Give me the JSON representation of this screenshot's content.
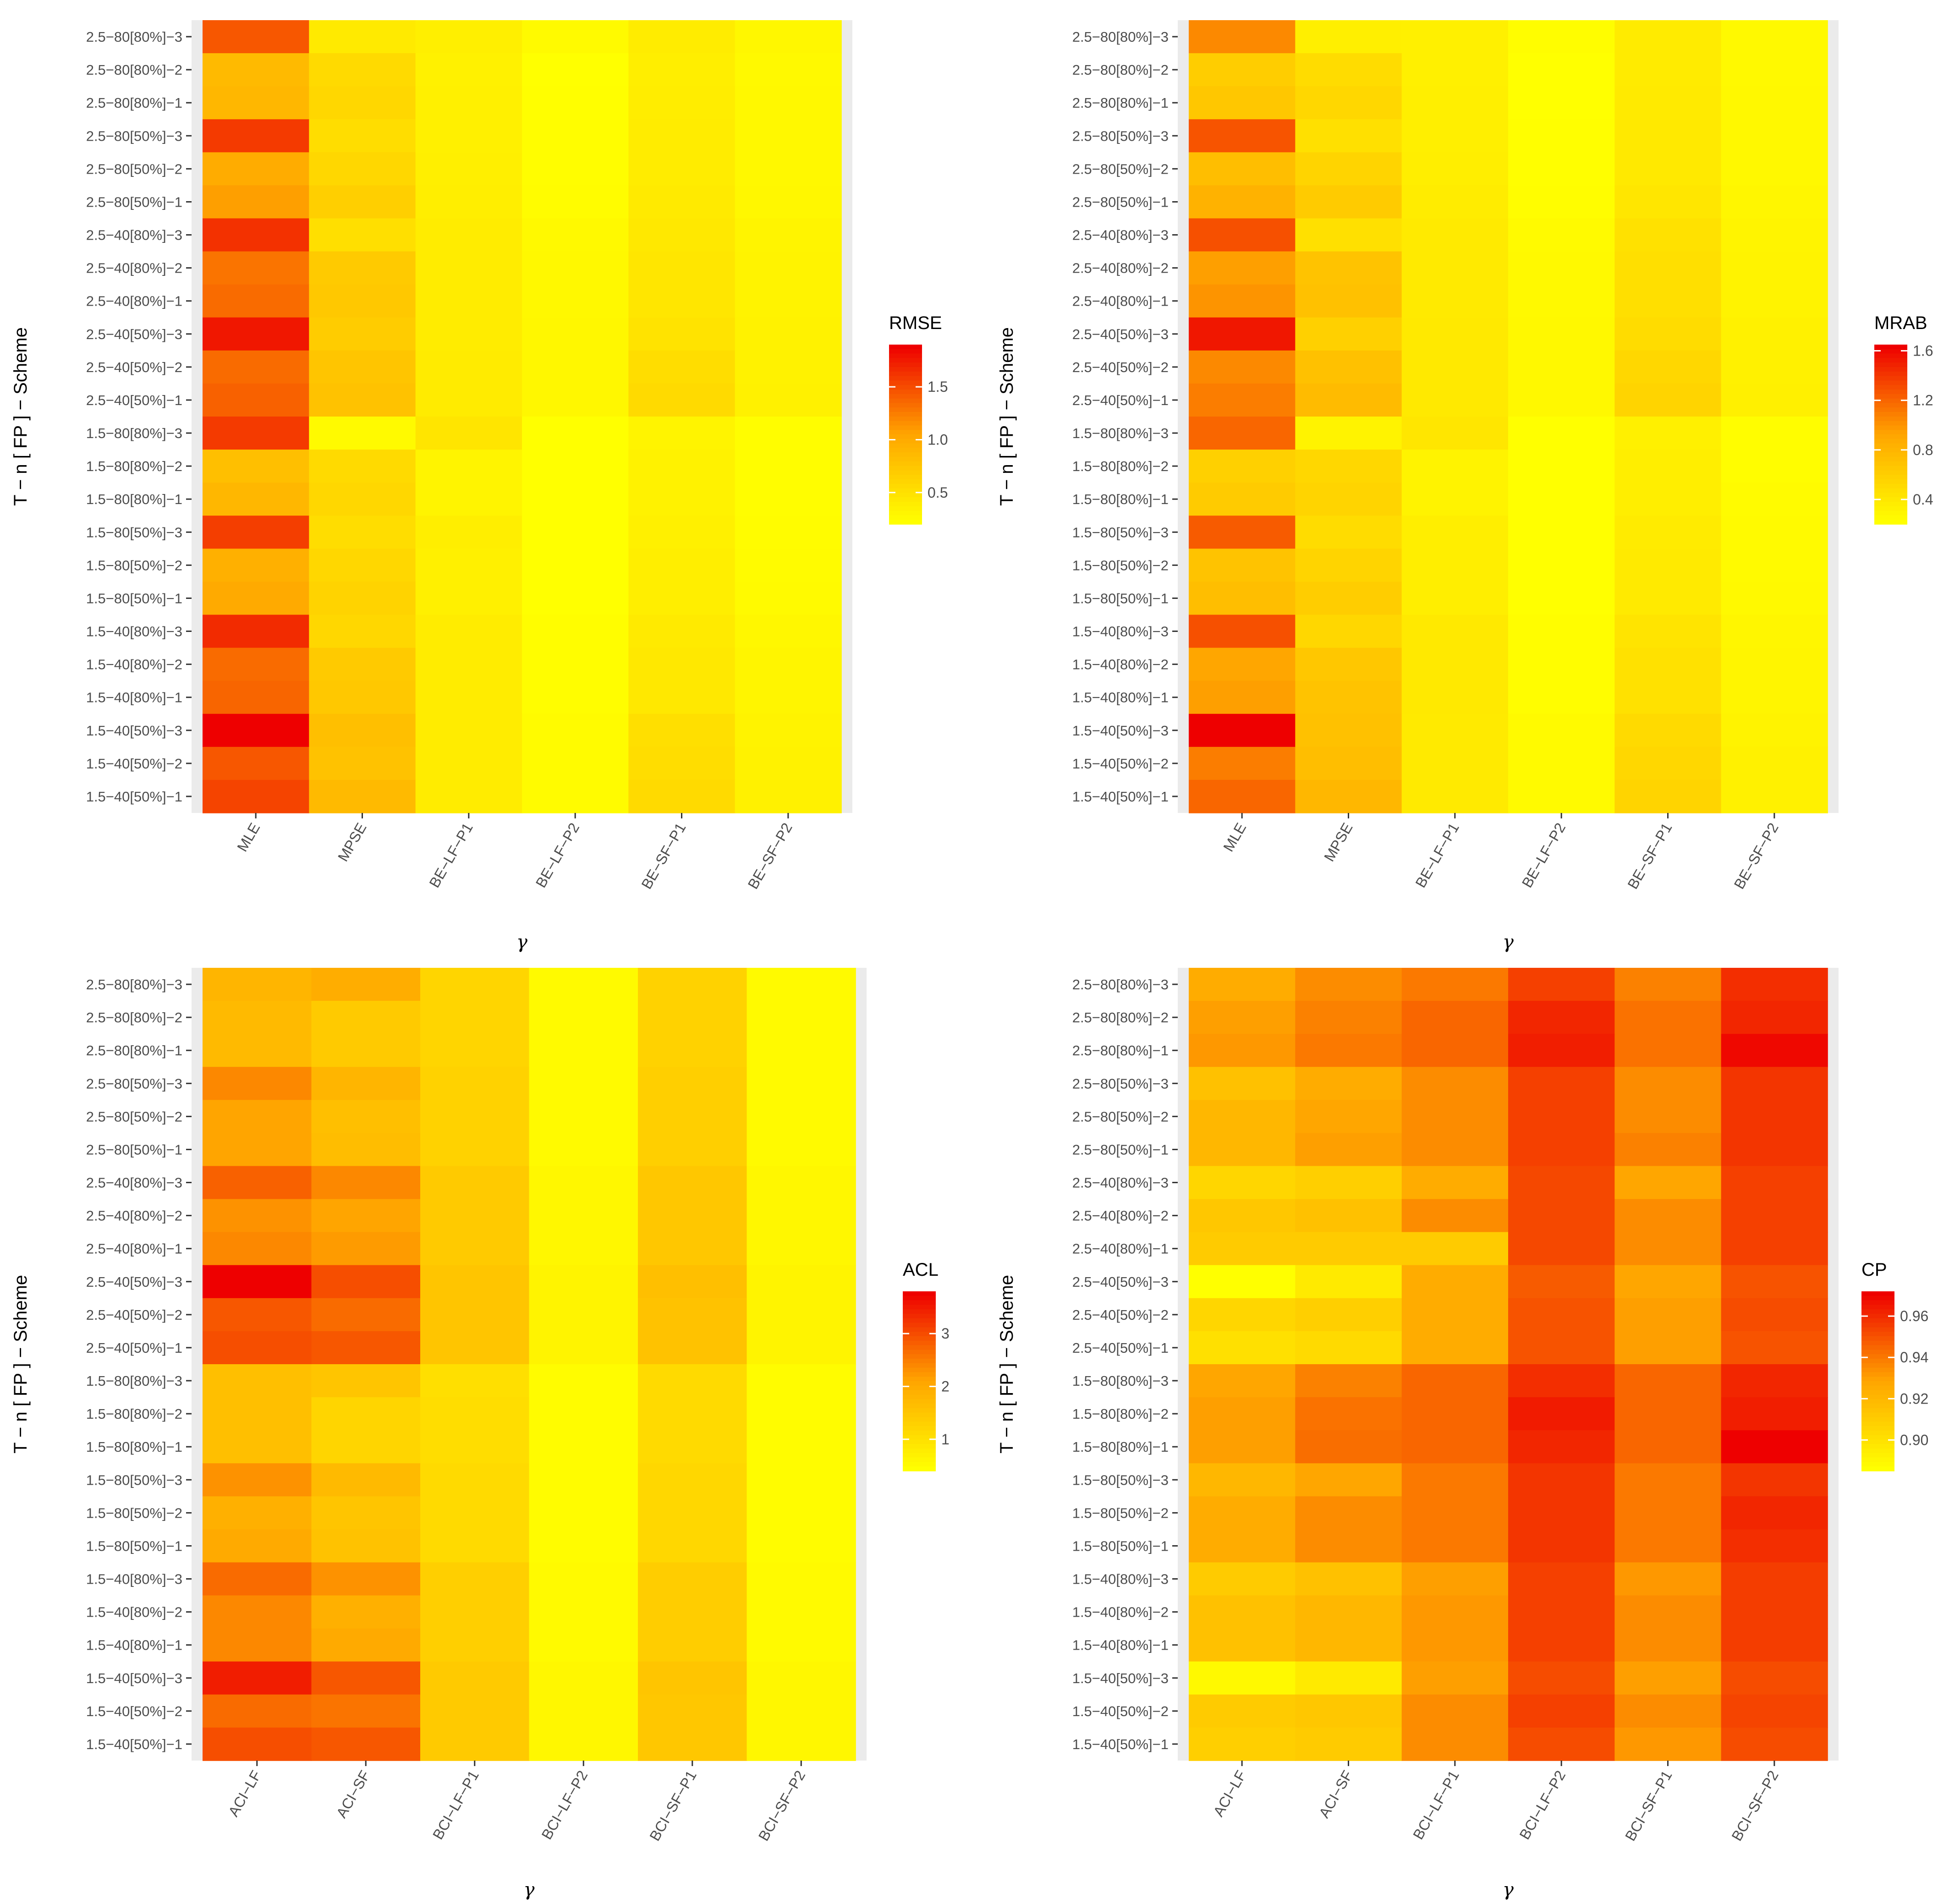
{
  "rows": [
    "2.5−80[80%]−3",
    "2.5−80[80%]−2",
    "2.5−80[80%]−1",
    "2.5−80[50%]−3",
    "2.5−80[50%]−2",
    "2.5−80[50%]−1",
    "2.5−40[80%]−3",
    "2.5−40[80%]−2",
    "2.5−40[80%]−1",
    "2.5−40[50%]−3",
    "2.5−40[50%]−2",
    "2.5−40[50%]−1",
    "1.5−80[80%]−3",
    "1.5−80[80%]−2",
    "1.5−80[80%]−1",
    "1.5−80[50%]−3",
    "1.5−80[50%]−2",
    "1.5−80[50%]−1",
    "1.5−40[80%]−3",
    "1.5−40[80%]−2",
    "1.5−40[80%]−1",
    "1.5−40[50%]−3",
    "1.5−40[50%]−2",
    "1.5−40[50%]−1"
  ],
  "chart_data": [
    {
      "type": "heatmap",
      "id": "rmse",
      "xlabel": "γ",
      "ylabel": "T − n [ FP ] − Scheme",
      "legend_title": "RMSE",
      "legend_ticks": [
        "0.5",
        "1.0",
        "1.5"
      ],
      "legend_tick_values": [
        0.5,
        1.0,
        1.5
      ],
      "range": [
        0.2,
        1.9
      ],
      "columns": [
        "MLE",
        "MPSE",
        "BE−LF−P1",
        "BE−LF−P2",
        "BE−SF−P1",
        "BE−SF−P2"
      ],
      "values": [
        [
          1.45,
          0.4,
          0.35,
          0.25,
          0.38,
          0.28
        ],
        [
          0.85,
          0.55,
          0.33,
          0.2,
          0.36,
          0.26
        ],
        [
          0.88,
          0.58,
          0.34,
          0.21,
          0.37,
          0.27
        ],
        [
          1.6,
          0.52,
          0.34,
          0.22,
          0.38,
          0.27
        ],
        [
          0.98,
          0.58,
          0.35,
          0.22,
          0.38,
          0.27
        ],
        [
          1.08,
          0.65,
          0.36,
          0.23,
          0.4,
          0.28
        ],
        [
          1.65,
          0.5,
          0.38,
          0.26,
          0.42,
          0.3
        ],
        [
          1.3,
          0.7,
          0.38,
          0.27,
          0.44,
          0.31
        ],
        [
          1.35,
          0.72,
          0.38,
          0.27,
          0.44,
          0.31
        ],
        [
          1.78,
          0.68,
          0.38,
          0.28,
          0.46,
          0.32
        ],
        [
          1.35,
          0.75,
          0.39,
          0.28,
          0.52,
          0.32
        ],
        [
          1.4,
          0.78,
          0.39,
          0.28,
          0.55,
          0.33
        ],
        [
          1.6,
          0.25,
          0.45,
          0.18,
          0.3,
          0.22
        ],
        [
          0.8,
          0.55,
          0.3,
          0.16,
          0.32,
          0.22
        ],
        [
          0.88,
          0.58,
          0.3,
          0.16,
          0.32,
          0.22
        ],
        [
          1.58,
          0.52,
          0.36,
          0.18,
          0.34,
          0.23
        ],
        [
          0.95,
          0.58,
          0.34,
          0.18,
          0.36,
          0.24
        ],
        [
          1.0,
          0.62,
          0.34,
          0.18,
          0.36,
          0.25
        ],
        [
          1.68,
          0.58,
          0.38,
          0.22,
          0.4,
          0.28
        ],
        [
          1.35,
          0.7,
          0.38,
          0.22,
          0.42,
          0.29
        ],
        [
          1.38,
          0.72,
          0.38,
          0.22,
          0.42,
          0.29
        ],
        [
          1.9,
          0.8,
          0.38,
          0.24,
          0.5,
          0.31
        ],
        [
          1.45,
          0.78,
          0.38,
          0.24,
          0.52,
          0.32
        ],
        [
          1.55,
          0.85,
          0.38,
          0.24,
          0.55,
          0.33
        ]
      ]
    },
    {
      "type": "heatmap",
      "id": "mrab",
      "xlabel": "γ",
      "ylabel": "T − n [ FP ] − Scheme",
      "legend_title": "MRAB",
      "legend_ticks": [
        "0.4",
        "0.8",
        "1.2",
        "1.6"
      ],
      "legend_tick_values": [
        0.4,
        0.8,
        1.2,
        1.6
      ],
      "range": [
        0.2,
        1.65
      ],
      "columns": [
        "MLE",
        "MPSE",
        "BE−LF−P1",
        "BE−LF−P2",
        "BE−SF−P1",
        "BE−SF−P2"
      ],
      "values": [
        [
          1.05,
          0.33,
          0.32,
          0.22,
          0.36,
          0.25
        ],
        [
          0.6,
          0.48,
          0.32,
          0.2,
          0.36,
          0.25
        ],
        [
          0.65,
          0.52,
          0.33,
          0.2,
          0.37,
          0.26
        ],
        [
          1.28,
          0.45,
          0.33,
          0.21,
          0.38,
          0.26
        ],
        [
          0.72,
          0.55,
          0.34,
          0.21,
          0.38,
          0.26
        ],
        [
          0.82,
          0.62,
          0.35,
          0.22,
          0.4,
          0.27
        ],
        [
          1.3,
          0.45,
          0.37,
          0.24,
          0.44,
          0.29
        ],
        [
          0.95,
          0.68,
          0.37,
          0.25,
          0.46,
          0.3
        ],
        [
          1.0,
          0.7,
          0.37,
          0.25,
          0.46,
          0.3
        ],
        [
          1.55,
          0.58,
          0.38,
          0.26,
          0.48,
          0.31
        ],
        [
          1.05,
          0.7,
          0.38,
          0.26,
          0.52,
          0.31
        ],
        [
          1.1,
          0.75,
          0.38,
          0.26,
          0.55,
          0.32
        ],
        [
          1.2,
          0.3,
          0.4,
          0.18,
          0.32,
          0.22
        ],
        [
          0.58,
          0.52,
          0.3,
          0.16,
          0.34,
          0.22
        ],
        [
          0.62,
          0.55,
          0.3,
          0.16,
          0.34,
          0.23
        ],
        [
          1.25,
          0.48,
          0.34,
          0.18,
          0.36,
          0.24
        ],
        [
          0.68,
          0.55,
          0.34,
          0.18,
          0.37,
          0.24
        ],
        [
          0.72,
          0.6,
          0.34,
          0.18,
          0.37,
          0.25
        ],
        [
          1.3,
          0.52,
          0.38,
          0.22,
          0.42,
          0.27
        ],
        [
          0.92,
          0.65,
          0.38,
          0.22,
          0.44,
          0.28
        ],
        [
          0.95,
          0.68,
          0.38,
          0.22,
          0.44,
          0.28
        ],
        [
          1.65,
          0.7,
          0.37,
          0.24,
          0.5,
          0.3
        ],
        [
          1.1,
          0.72,
          0.37,
          0.24,
          0.52,
          0.31
        ],
        [
          1.2,
          0.78,
          0.37,
          0.24,
          0.55,
          0.31
        ]
      ]
    },
    {
      "type": "heatmap",
      "id": "acl",
      "xlabel": "γ",
      "ylabel": "T − n [ FP ] − Scheme",
      "legend_title": "ACL",
      "legend_ticks": [
        "1",
        "2",
        "3"
      ],
      "legend_tick_values": [
        1,
        2,
        3
      ],
      "range": [
        0.4,
        3.8
      ],
      "columns": [
        "ACI−LF",
        "ACI−SF",
        "BCI−LF−P1",
        "BCI−LF−P2",
        "BCI−SF−P1",
        "BCI−SF−P2"
      ],
      "values": [
        [
          1.8,
          1.95,
          1.2,
          0.5,
          1.25,
          0.5
        ],
        [
          1.7,
          1.4,
          1.2,
          0.5,
          1.25,
          0.5
        ],
        [
          1.7,
          1.4,
          1.2,
          0.5,
          1.25,
          0.5
        ],
        [
          2.4,
          1.8,
          1.25,
          0.5,
          1.3,
          0.5
        ],
        [
          2.1,
          1.6,
          1.25,
          0.5,
          1.3,
          0.5
        ],
        [
          2.1,
          1.65,
          1.25,
          0.5,
          1.3,
          0.5
        ],
        [
          2.8,
          2.4,
          1.4,
          0.55,
          1.45,
          0.55
        ],
        [
          2.3,
          2.1,
          1.4,
          0.55,
          1.45,
          0.55
        ],
        [
          2.4,
          2.2,
          1.4,
          0.55,
          1.45,
          0.55
        ],
        [
          3.8,
          3.0,
          1.5,
          0.6,
          1.6,
          0.6
        ],
        [
          2.9,
          2.7,
          1.5,
          0.6,
          1.55,
          0.6
        ],
        [
          3.0,
          2.9,
          1.5,
          0.6,
          1.55,
          0.6
        ],
        [
          1.6,
          1.5,
          1.0,
          0.45,
          1.1,
          0.45
        ],
        [
          1.6,
          1.2,
          1.05,
          0.45,
          1.1,
          0.45
        ],
        [
          1.6,
          1.2,
          1.05,
          0.45,
          1.1,
          0.45
        ],
        [
          2.3,
          1.7,
          1.1,
          0.45,
          1.15,
          0.45
        ],
        [
          1.9,
          1.5,
          1.1,
          0.45,
          1.15,
          0.45
        ],
        [
          2.0,
          1.55,
          1.1,
          0.45,
          1.15,
          0.45
        ],
        [
          2.7,
          2.3,
          1.3,
          0.5,
          1.35,
          0.5
        ],
        [
          2.4,
          1.9,
          1.3,
          0.5,
          1.35,
          0.5
        ],
        [
          2.4,
          2.0,
          1.3,
          0.5,
          1.35,
          0.5
        ],
        [
          3.5,
          2.9,
          1.4,
          0.55,
          1.5,
          0.55
        ],
        [
          2.7,
          2.6,
          1.4,
          0.55,
          1.45,
          0.55
        ],
        [
          3.0,
          2.9,
          1.4,
          0.55,
          1.45,
          0.55
        ]
      ]
    },
    {
      "type": "heatmap",
      "id": "cp",
      "xlabel": "γ",
      "ylabel": "T − n [ FP ] − Scheme",
      "legend_title": "CP",
      "legend_ticks": [
        "0.90",
        "0.92",
        "0.94",
        "0.96"
      ],
      "legend_tick_values": [
        0.9,
        0.92,
        0.94,
        0.96
      ],
      "range": [
        0.885,
        0.972
      ],
      "columns": [
        "ACI−LF",
        "ACI−SF",
        "BCI−LF−P1",
        "BCI−LF−P2",
        "BCI−SF−P1",
        "BCI−SF−P2"
      ],
      "values": [
        [
          0.925,
          0.935,
          0.94,
          0.955,
          0.938,
          0.96
        ],
        [
          0.93,
          0.938,
          0.945,
          0.962,
          0.942,
          0.962
        ],
        [
          0.932,
          0.94,
          0.945,
          0.964,
          0.942,
          0.97
        ],
        [
          0.915,
          0.925,
          0.935,
          0.955,
          0.935,
          0.958
        ],
        [
          0.92,
          0.928,
          0.935,
          0.955,
          0.935,
          0.958
        ],
        [
          0.92,
          0.93,
          0.935,
          0.955,
          0.938,
          0.958
        ],
        [
          0.905,
          0.908,
          0.925,
          0.953,
          0.928,
          0.955
        ],
        [
          0.912,
          0.915,
          0.935,
          0.953,
          0.935,
          0.955
        ],
        [
          0.91,
          0.91,
          0.91,
          0.953,
          0.935,
          0.955
        ],
        [
          0.885,
          0.895,
          0.925,
          0.948,
          0.928,
          0.95
        ],
        [
          0.905,
          0.908,
          0.925,
          0.95,
          0.93,
          0.952
        ],
        [
          0.9,
          0.903,
          0.925,
          0.95,
          0.93,
          0.95
        ],
        [
          0.928,
          0.938,
          0.945,
          0.96,
          0.945,
          0.962
        ],
        [
          0.93,
          0.942,
          0.945,
          0.965,
          0.945,
          0.964
        ],
        [
          0.93,
          0.943,
          0.945,
          0.962,
          0.945,
          0.972
        ],
        [
          0.92,
          0.928,
          0.94,
          0.958,
          0.94,
          0.958
        ],
        [
          0.925,
          0.935,
          0.94,
          0.958,
          0.94,
          0.962
        ],
        [
          0.925,
          0.935,
          0.94,
          0.958,
          0.94,
          0.96
        ],
        [
          0.91,
          0.915,
          0.93,
          0.955,
          0.932,
          0.956
        ],
        [
          0.915,
          0.92,
          0.932,
          0.955,
          0.935,
          0.956
        ],
        [
          0.915,
          0.92,
          0.932,
          0.955,
          0.935,
          0.956
        ],
        [
          0.888,
          0.895,
          0.93,
          0.952,
          0.93,
          0.952
        ],
        [
          0.91,
          0.912,
          0.935,
          0.955,
          0.935,
          0.954
        ],
        [
          0.908,
          0.91,
          0.935,
          0.952,
          0.932,
          0.952
        ]
      ]
    }
  ]
}
